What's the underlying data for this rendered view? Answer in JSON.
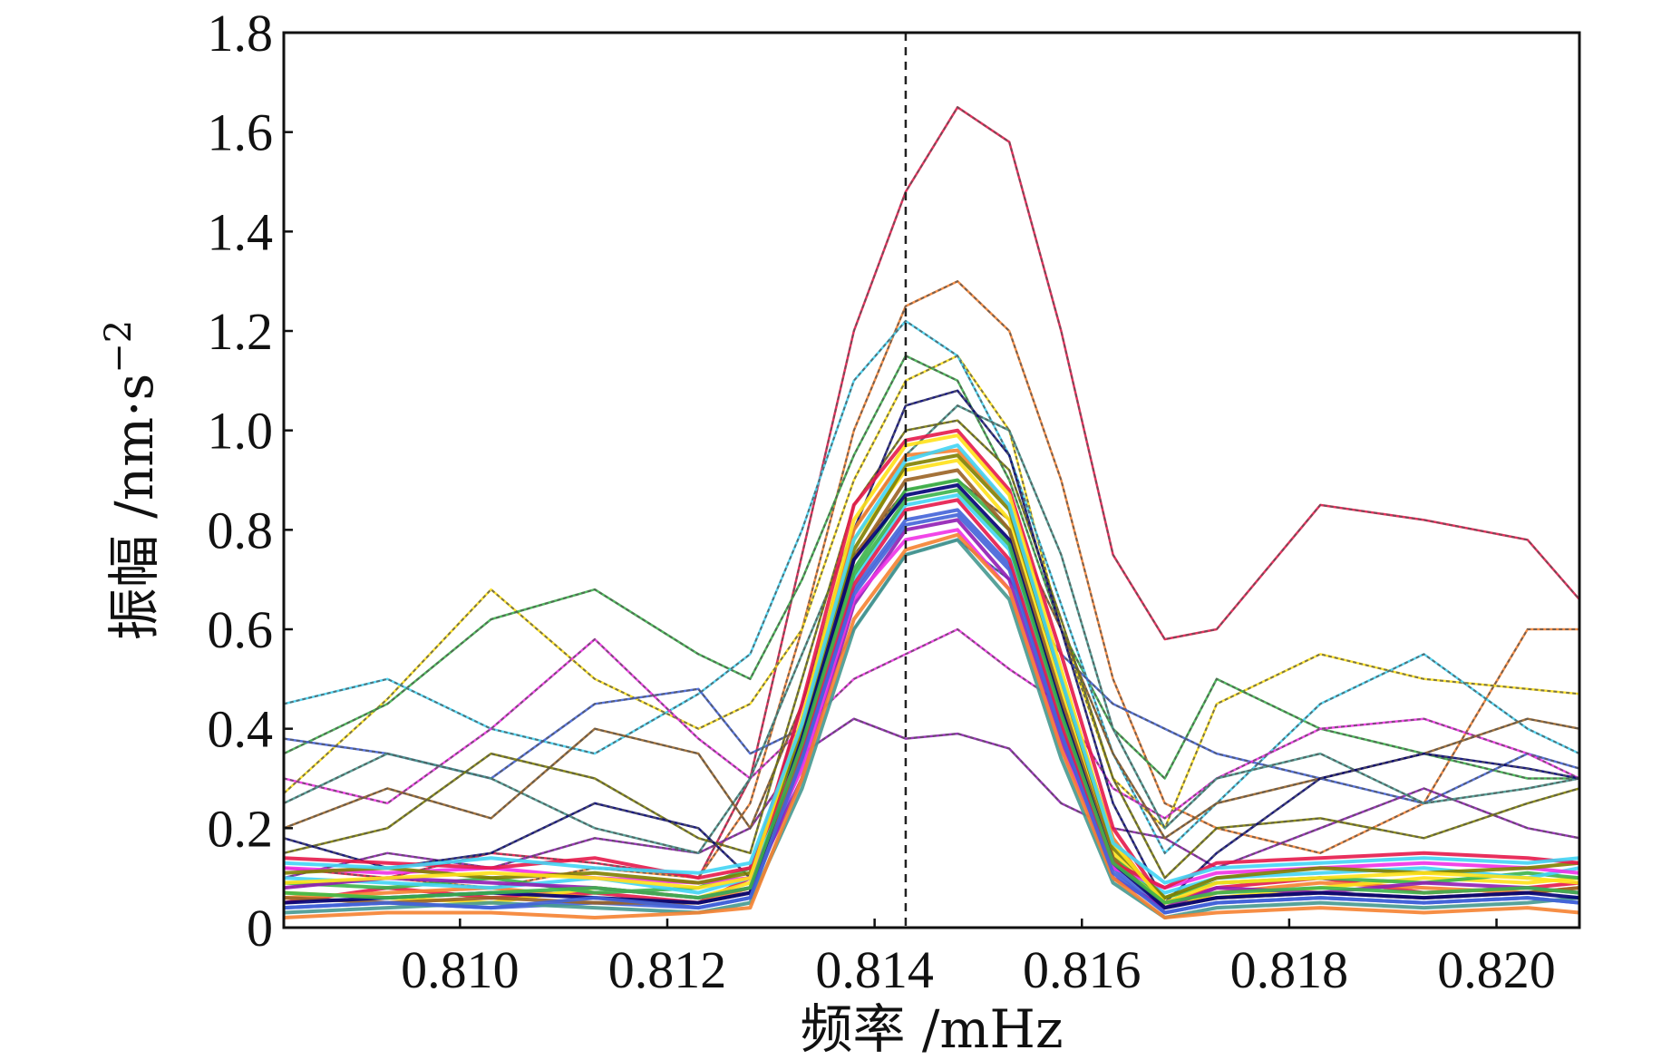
{
  "chart_data": {
    "type": "line",
    "title": "",
    "xlabel": "频率 /mHz",
    "ylabel": "振幅 /nm·s",
    "ylabel_exponent": "−2",
    "xlim": [
      0.8083,
      0.8208
    ],
    "ylim": [
      0,
      1.8
    ],
    "x_ticks": [
      {
        "value": 0.81,
        "label": "0.810"
      },
      {
        "value": 0.812,
        "label": "0.812"
      },
      {
        "value": 0.814,
        "label": "0.814"
      },
      {
        "value": 0.816,
        "label": "0.816"
      },
      {
        "value": 0.818,
        "label": "0.818"
      },
      {
        "value": 0.82,
        "label": "0.820"
      }
    ],
    "y_ticks": [
      {
        "value": 0,
        "label": "0"
      },
      {
        "value": 0.2,
        "label": "0.2"
      },
      {
        "value": 0.4,
        "label": "0.4"
      },
      {
        "value": 0.6,
        "label": "0.6"
      },
      {
        "value": 0.8,
        "label": "0.8"
      },
      {
        "value": 1.0,
        "label": "1.0"
      },
      {
        "value": 1.2,
        "label": "1.2"
      },
      {
        "value": 1.4,
        "label": "1.4"
      },
      {
        "value": 1.6,
        "label": "1.6"
      },
      {
        "value": 1.8,
        "label": "1.8"
      }
    ],
    "reference_line": {
      "x": 0.8143,
      "style": "dashed"
    },
    "grid": false,
    "legend": "none",
    "colors": [
      "#e6194b",
      "#f58231",
      "#ffe119",
      "#3cb44b",
      "#42d4f4",
      "#4363d8",
      "#911eb4",
      "#f032e6",
      "#469990",
      "#9a6324",
      "#808000",
      "#000075"
    ],
    "outline_color": "#555555",
    "x": [
      0.8083,
      0.8093,
      0.8103,
      0.8113,
      0.8123,
      0.8128,
      0.8133,
      0.8138,
      0.8143,
      0.8148,
      0.8153,
      0.8158,
      0.8163,
      0.8168,
      0.8173,
      0.8183,
      0.8193,
      0.8203,
      0.8208
    ],
    "series": [
      {
        "values": [
          0.12,
          0.1,
          0.15,
          0.13,
          0.1,
          0.3,
          0.75,
          1.2,
          1.48,
          1.65,
          1.58,
          1.2,
          0.75,
          0.58,
          0.6,
          0.85,
          0.82,
          0.78,
          0.66
        ]
      },
      {
        "values": [
          0.08,
          0.1,
          0.08,
          0.12,
          0.1,
          0.25,
          0.6,
          1.0,
          1.25,
          1.3,
          1.2,
          0.9,
          0.5,
          0.25,
          0.2,
          0.15,
          0.25,
          0.6,
          0.6
        ]
      },
      {
        "values": [
          0.27,
          0.46,
          0.68,
          0.5,
          0.4,
          0.45,
          0.6,
          0.9,
          1.1,
          1.15,
          1.0,
          0.6,
          0.3,
          0.2,
          0.45,
          0.55,
          0.5,
          0.48,
          0.47
        ]
      },
      {
        "values": [
          0.35,
          0.45,
          0.62,
          0.68,
          0.55,
          0.5,
          0.7,
          0.95,
          1.15,
          1.1,
          0.9,
          0.6,
          0.4,
          0.3,
          0.5,
          0.4,
          0.35,
          0.3,
          0.3
        ]
      },
      {
        "values": [
          0.45,
          0.5,
          0.4,
          0.35,
          0.47,
          0.55,
          0.8,
          1.1,
          1.22,
          1.15,
          0.95,
          0.65,
          0.35,
          0.15,
          0.25,
          0.45,
          0.55,
          0.4,
          0.35
        ]
      },
      {
        "values": [
          0.38,
          0.35,
          0.3,
          0.45,
          0.48,
          0.35,
          0.4,
          0.6,
          0.75,
          0.78,
          0.7,
          0.55,
          0.45,
          0.4,
          0.35,
          0.3,
          0.25,
          0.35,
          0.32
        ]
      },
      {
        "values": [
          0.1,
          0.15,
          0.12,
          0.18,
          0.15,
          0.2,
          0.35,
          0.42,
          0.38,
          0.39,
          0.36,
          0.25,
          0.2,
          0.18,
          0.12,
          0.2,
          0.28,
          0.2,
          0.18
        ]
      },
      {
        "values": [
          0.3,
          0.25,
          0.4,
          0.58,
          0.38,
          0.3,
          0.4,
          0.5,
          0.55,
          0.6,
          0.52,
          0.45,
          0.28,
          0.22,
          0.3,
          0.4,
          0.42,
          0.35,
          0.3
        ]
      },
      {
        "values": [
          0.25,
          0.35,
          0.3,
          0.2,
          0.15,
          0.3,
          0.55,
          0.8,
          0.95,
          1.05,
          1.0,
          0.75,
          0.4,
          0.2,
          0.3,
          0.35,
          0.25,
          0.28,
          0.3
        ]
      },
      {
        "values": [
          0.2,
          0.28,
          0.22,
          0.4,
          0.35,
          0.2,
          0.45,
          0.75,
          0.88,
          0.9,
          0.82,
          0.6,
          0.35,
          0.18,
          0.25,
          0.3,
          0.35,
          0.42,
          0.4
        ]
      },
      {
        "values": [
          0.15,
          0.2,
          0.35,
          0.3,
          0.18,
          0.15,
          0.5,
          0.85,
          1.0,
          1.02,
          0.92,
          0.62,
          0.3,
          0.1,
          0.2,
          0.22,
          0.18,
          0.25,
          0.28
        ]
      },
      {
        "values": [
          0.18,
          0.12,
          0.15,
          0.25,
          0.2,
          0.1,
          0.45,
          0.8,
          1.05,
          1.08,
          0.95,
          0.6,
          0.25,
          0.05,
          0.15,
          0.3,
          0.35,
          0.32,
          0.3
        ]
      },
      {
        "values": [
          0.05,
          0.08,
          0.06,
          0.07,
          0.05,
          0.1,
          0.45,
          0.85,
          0.98,
          1.0,
          0.88,
          0.55,
          0.2,
          0.05,
          0.08,
          0.1,
          0.07,
          0.08,
          0.09
        ]
      },
      {
        "values": [
          0.06,
          0.07,
          0.08,
          0.06,
          0.05,
          0.08,
          0.42,
          0.8,
          0.95,
          0.96,
          0.85,
          0.5,
          0.18,
          0.04,
          0.07,
          0.09,
          0.08,
          0.07,
          0.08
        ]
      },
      {
        "values": [
          0.07,
          0.06,
          0.05,
          0.08,
          0.06,
          0.09,
          0.4,
          0.78,
          0.92,
          0.94,
          0.82,
          0.48,
          0.15,
          0.05,
          0.06,
          0.08,
          0.1,
          0.09,
          0.1
        ]
      },
      {
        "values": [
          0.09,
          0.08,
          0.1,
          0.07,
          0.08,
          0.12,
          0.38,
          0.72,
          0.88,
          0.9,
          0.8,
          0.45,
          0.14,
          0.06,
          0.09,
          0.1,
          0.09,
          0.11,
          0.1
        ]
      },
      {
        "values": [
          0.1,
          0.09,
          0.08,
          0.1,
          0.07,
          0.1,
          0.35,
          0.7,
          0.85,
          0.87,
          0.76,
          0.42,
          0.13,
          0.07,
          0.1,
          0.11,
          0.12,
          0.1,
          0.12
        ]
      },
      {
        "values": [
          0.04,
          0.05,
          0.04,
          0.05,
          0.04,
          0.06,
          0.33,
          0.68,
          0.82,
          0.84,
          0.73,
          0.4,
          0.12,
          0.03,
          0.05,
          0.06,
          0.05,
          0.06,
          0.05
        ]
      },
      {
        "values": [
          0.08,
          0.1,
          0.09,
          0.08,
          0.06,
          0.08,
          0.3,
          0.65,
          0.8,
          0.82,
          0.7,
          0.38,
          0.1,
          0.04,
          0.08,
          0.07,
          0.09,
          0.08,
          0.07
        ]
      },
      {
        "values": [
          0.12,
          0.11,
          0.12,
          0.1,
          0.09,
          0.1,
          0.32,
          0.66,
          0.78,
          0.8,
          0.68,
          0.36,
          0.12,
          0.08,
          0.11,
          0.12,
          0.13,
          0.12,
          0.11
        ]
      },
      {
        "values": [
          0.03,
          0.04,
          0.05,
          0.04,
          0.03,
          0.05,
          0.28,
          0.6,
          0.75,
          0.78,
          0.66,
          0.34,
          0.09,
          0.02,
          0.04,
          0.05,
          0.04,
          0.05,
          0.06
        ]
      },
      {
        "values": [
          0.06,
          0.05,
          0.06,
          0.05,
          0.05,
          0.07,
          0.35,
          0.74,
          0.9,
          0.92,
          0.8,
          0.46,
          0.14,
          0.04,
          0.06,
          0.07,
          0.06,
          0.07,
          0.08
        ]
      },
      {
        "values": [
          0.11,
          0.12,
          0.1,
          0.11,
          0.09,
          0.11,
          0.4,
          0.76,
          0.93,
          0.95,
          0.84,
          0.5,
          0.16,
          0.06,
          0.1,
          0.12,
          0.11,
          0.12,
          0.13
        ]
      },
      {
        "values": [
          0.05,
          0.06,
          0.07,
          0.06,
          0.05,
          0.07,
          0.38,
          0.74,
          0.87,
          0.89,
          0.78,
          0.44,
          0.13,
          0.04,
          0.06,
          0.07,
          0.06,
          0.07,
          0.06
        ]
      },
      {
        "values": [
          0.14,
          0.13,
          0.12,
          0.14,
          0.1,
          0.12,
          0.36,
          0.69,
          0.84,
          0.86,
          0.74,
          0.41,
          0.13,
          0.08,
          0.13,
          0.14,
          0.15,
          0.14,
          0.13
        ]
      },
      {
        "values": [
          0.02,
          0.03,
          0.03,
          0.02,
          0.03,
          0.04,
          0.3,
          0.62,
          0.76,
          0.79,
          0.68,
          0.36,
          0.1,
          0.02,
          0.03,
          0.04,
          0.03,
          0.04,
          0.03
        ]
      },
      {
        "values": [
          0.09,
          0.1,
          0.11,
          0.1,
          0.08,
          0.1,
          0.42,
          0.82,
          0.97,
          0.99,
          0.87,
          0.52,
          0.17,
          0.05,
          0.09,
          0.1,
          0.11,
          0.1,
          0.09
        ]
      },
      {
        "values": [
          0.07,
          0.06,
          0.07,
          0.08,
          0.06,
          0.08,
          0.37,
          0.71,
          0.86,
          0.88,
          0.77,
          0.43,
          0.13,
          0.05,
          0.07,
          0.08,
          0.07,
          0.08,
          0.07
        ]
      },
      {
        "values": [
          0.13,
          0.12,
          0.14,
          0.12,
          0.11,
          0.13,
          0.41,
          0.78,
          0.94,
          0.97,
          0.85,
          0.5,
          0.17,
          0.09,
          0.12,
          0.13,
          0.14,
          0.13,
          0.14
        ]
      },
      {
        "values": [
          0.04,
          0.05,
          0.04,
          0.06,
          0.04,
          0.06,
          0.34,
          0.67,
          0.81,
          0.83,
          0.72,
          0.39,
          0.11,
          0.03,
          0.05,
          0.06,
          0.05,
          0.06,
          0.05
        ]
      }
    ]
  }
}
